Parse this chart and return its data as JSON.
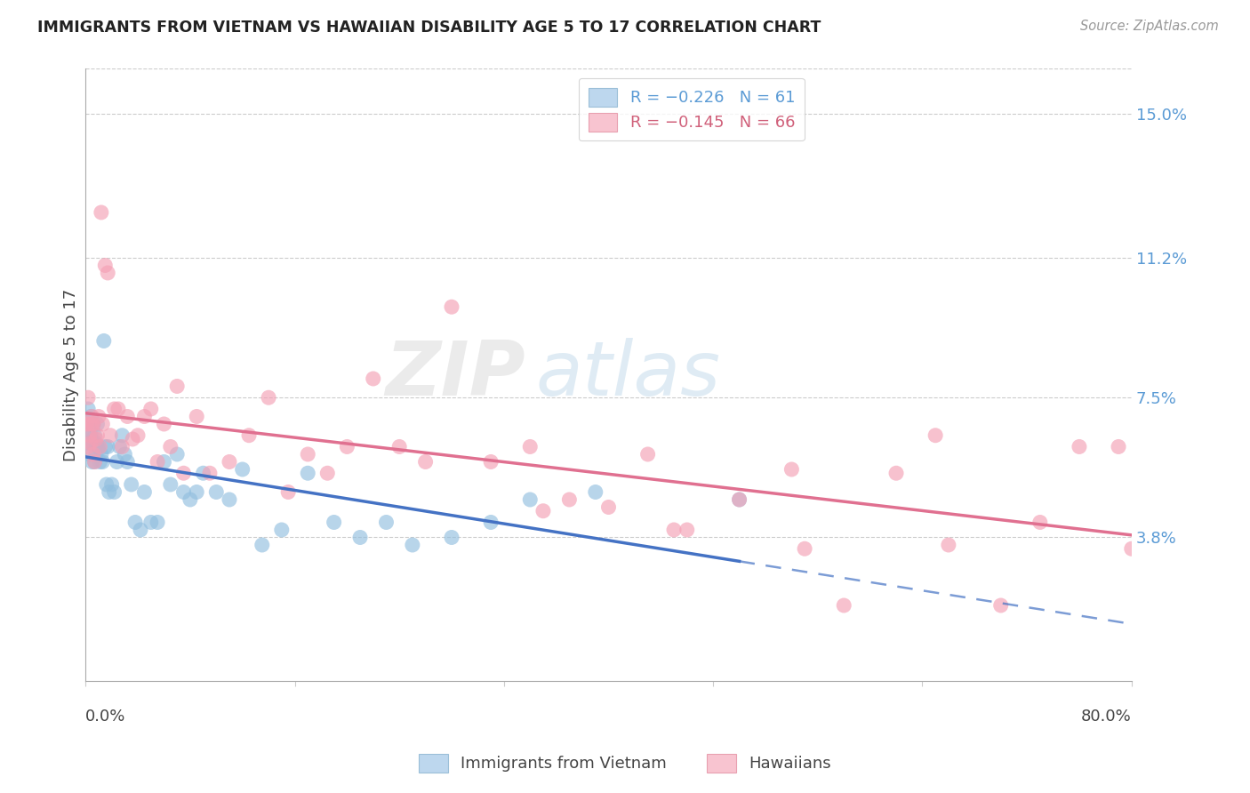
{
  "title": "IMMIGRANTS FROM VIETNAM VS HAWAIIAN DISABILITY AGE 5 TO 17 CORRELATION CHART",
  "source": "Source: ZipAtlas.com",
  "ylabel": "Disability Age 5 to 17",
  "ytick_labels": [
    "3.8%",
    "7.5%",
    "11.2%",
    "15.0%"
  ],
  "ytick_values": [
    0.038,
    0.075,
    0.112,
    0.15
  ],
  "xmin": 0.0,
  "xmax": 0.8,
  "ymin": 0.0,
  "ymax": 0.162,
  "series1_name": "Immigrants from Vietnam",
  "series2_name": "Hawaiians",
  "series1_color": "#92bfdf",
  "series2_color": "#f4a0b5",
  "series1_line_color": "#4472c4",
  "series2_line_color": "#e07090",
  "trend1_solid_xend": 0.5,
  "watermark_zip": "ZIP",
  "watermark_atlas": "atlas",
  "blue_scatter_x": [
    0.001,
    0.002,
    0.002,
    0.003,
    0.003,
    0.004,
    0.004,
    0.005,
    0.005,
    0.006,
    0.006,
    0.007,
    0.007,
    0.008,
    0.008,
    0.009,
    0.009,
    0.01,
    0.011,
    0.012,
    0.013,
    0.014,
    0.015,
    0.016,
    0.017,
    0.018,
    0.02,
    0.022,
    0.024,
    0.026,
    0.028,
    0.03,
    0.032,
    0.035,
    0.038,
    0.042,
    0.045,
    0.05,
    0.055,
    0.06,
    0.065,
    0.07,
    0.075,
    0.08,
    0.085,
    0.09,
    0.1,
    0.11,
    0.12,
    0.135,
    0.15,
    0.17,
    0.19,
    0.21,
    0.23,
    0.25,
    0.28,
    0.31,
    0.34,
    0.39,
    0.5
  ],
  "blue_scatter_y": [
    0.063,
    0.068,
    0.072,
    0.065,
    0.06,
    0.065,
    0.07,
    0.063,
    0.058,
    0.063,
    0.068,
    0.058,
    0.065,
    0.063,
    0.06,
    0.062,
    0.068,
    0.062,
    0.058,
    0.06,
    0.058,
    0.09,
    0.062,
    0.052,
    0.062,
    0.05,
    0.052,
    0.05,
    0.058,
    0.062,
    0.065,
    0.06,
    0.058,
    0.052,
    0.042,
    0.04,
    0.05,
    0.042,
    0.042,
    0.058,
    0.052,
    0.06,
    0.05,
    0.048,
    0.05,
    0.055,
    0.05,
    0.048,
    0.056,
    0.036,
    0.04,
    0.055,
    0.042,
    0.038,
    0.042,
    0.036,
    0.038,
    0.042,
    0.048,
    0.05,
    0.048
  ],
  "pink_scatter_x": [
    0.001,
    0.002,
    0.002,
    0.003,
    0.003,
    0.004,
    0.005,
    0.005,
    0.006,
    0.006,
    0.007,
    0.008,
    0.009,
    0.01,
    0.011,
    0.012,
    0.013,
    0.015,
    0.017,
    0.019,
    0.022,
    0.025,
    0.028,
    0.032,
    0.036,
    0.04,
    0.045,
    0.05,
    0.055,
    0.06,
    0.065,
    0.07,
    0.075,
    0.085,
    0.095,
    0.11,
    0.125,
    0.14,
    0.155,
    0.17,
    0.185,
    0.2,
    0.22,
    0.24,
    0.26,
    0.28,
    0.31,
    0.34,
    0.37,
    0.4,
    0.43,
    0.46,
    0.5,
    0.54,
    0.58,
    0.62,
    0.66,
    0.7,
    0.73,
    0.76,
    0.79,
    0.8,
    0.35,
    0.45,
    0.55,
    0.65
  ],
  "pink_scatter_y": [
    0.068,
    0.075,
    0.062,
    0.068,
    0.065,
    0.063,
    0.068,
    0.07,
    0.06,
    0.068,
    0.058,
    0.064,
    0.065,
    0.07,
    0.062,
    0.124,
    0.068,
    0.11,
    0.108,
    0.065,
    0.072,
    0.072,
    0.062,
    0.07,
    0.064,
    0.065,
    0.07,
    0.072,
    0.058,
    0.068,
    0.062,
    0.078,
    0.055,
    0.07,
    0.055,
    0.058,
    0.065,
    0.075,
    0.05,
    0.06,
    0.055,
    0.062,
    0.08,
    0.062,
    0.058,
    0.099,
    0.058,
    0.062,
    0.048,
    0.046,
    0.06,
    0.04,
    0.048,
    0.056,
    0.02,
    0.055,
    0.036,
    0.02,
    0.042,
    0.062,
    0.062,
    0.035,
    0.045,
    0.04,
    0.035,
    0.065
  ]
}
